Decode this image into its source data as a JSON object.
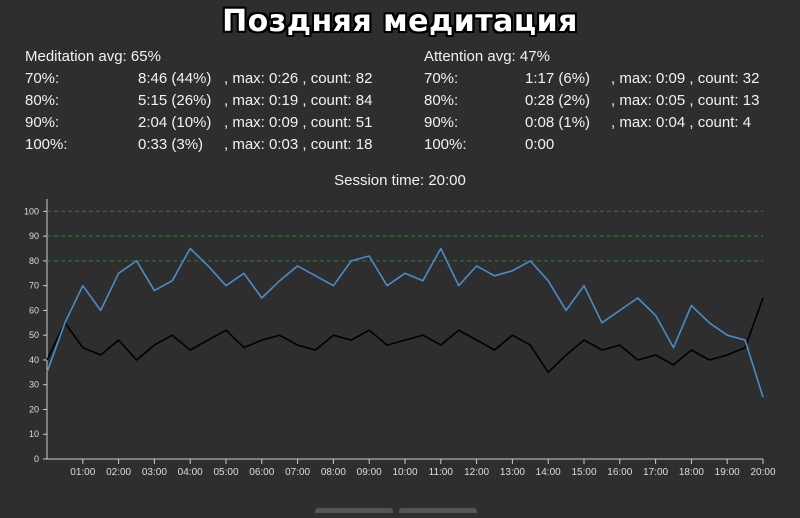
{
  "header": {
    "title": "Поздняя медитация"
  },
  "meditation": {
    "avg_label": "Meditation avg: 65%",
    "rows": [
      {
        "level": "70%:",
        "time": "8:46 (44%)",
        "rest": ", max: 0:26 , count: 82"
      },
      {
        "level": "80%:",
        "time": "5:15 (26%)",
        "rest": ", max: 0:19 , count: 84"
      },
      {
        "level": "90%:",
        "time": "2:04 (10%)",
        "rest": ", max: 0:09 , count: 51"
      },
      {
        "level": "100%:",
        "time": "0:33 (3%)",
        "rest": ", max: 0:03 , count: 18"
      }
    ]
  },
  "attention": {
    "avg_label": "Attention avg: 47%",
    "rows": [
      {
        "level": "70%:",
        "time": "1:17 (6%)",
        "rest": ", max: 0:09 , count: 32"
      },
      {
        "level": "80%:",
        "time": "0:28 (2%)",
        "rest": ", max: 0:05 , count: 13"
      },
      {
        "level": "90%:",
        "time": "0:08 (1%)",
        "rest": ", max: 0:04 , count: 4"
      },
      {
        "level": "100%:",
        "time": "0:00",
        "rest": ""
      }
    ]
  },
  "session": {
    "label": "Session time: 20:00"
  },
  "chart_data": {
    "type": "line",
    "x_unit": "minutes",
    "xlim": [
      0,
      20
    ],
    "ylim": [
      0,
      105
    ],
    "y_ticks": [
      "0",
      "10",
      "20",
      "30",
      "40",
      "50",
      "60",
      "70",
      "80",
      "90",
      "100"
    ],
    "x_ticks": [
      "01:00",
      "02:00",
      "03:00",
      "04:00",
      "05:00",
      "06:00",
      "07:00",
      "08:00",
      "09:00",
      "10:00",
      "11:00",
      "12:00",
      "13:00",
      "14:00",
      "15:00",
      "16:00",
      "17:00",
      "18:00",
      "19:00",
      "20:00"
    ],
    "threshold_lines": [
      80,
      90,
      100
    ],
    "grid": false,
    "colors": {
      "meditation": "#4a8cc9",
      "attention": "#000000",
      "threshold": "#2e7d32",
      "axis": "#cccccc"
    },
    "series": [
      {
        "key": "meditation",
        "x": [
          0,
          0.5,
          1,
          1.5,
          2,
          2.5,
          3,
          3.5,
          4,
          4.5,
          5,
          5.5,
          6,
          6.5,
          7,
          7.5,
          8,
          8.5,
          9,
          9.5,
          10,
          10.5,
          11,
          11.5,
          12,
          12.5,
          13,
          13.5,
          14,
          14.5,
          15,
          15.5,
          16,
          16.5,
          17,
          17.5,
          18,
          18.5,
          19,
          19.5,
          20
        ],
        "values": [
          35,
          55,
          70,
          60,
          75,
          80,
          68,
          72,
          85,
          78,
          70,
          75,
          65,
          72,
          78,
          74,
          70,
          80,
          82,
          70,
          75,
          72,
          85,
          70,
          78,
          74,
          76,
          80,
          72,
          60,
          70,
          55,
          60,
          65,
          58,
          45,
          62,
          55,
          50,
          48,
          25
        ]
      },
      {
        "key": "attention",
        "x": [
          0,
          0.5,
          1,
          1.5,
          2,
          2.5,
          3,
          3.5,
          4,
          4.5,
          5,
          5.5,
          6,
          6.5,
          7,
          7.5,
          8,
          8.5,
          9,
          9.5,
          10,
          10.5,
          11,
          11.5,
          12,
          12.5,
          13,
          13.5,
          14,
          14.5,
          15,
          15.5,
          16,
          16.5,
          17,
          17.5,
          18,
          18.5,
          19,
          19.5,
          20
        ],
        "values": [
          40,
          55,
          45,
          42,
          48,
          40,
          46,
          50,
          44,
          48,
          52,
          45,
          48,
          50,
          46,
          44,
          50,
          48,
          52,
          46,
          48,
          50,
          46,
          52,
          48,
          44,
          50,
          46,
          35,
          42,
          48,
          44,
          46,
          40,
          42,
          38,
          44,
          40,
          42,
          45,
          65
        ]
      }
    ]
  }
}
